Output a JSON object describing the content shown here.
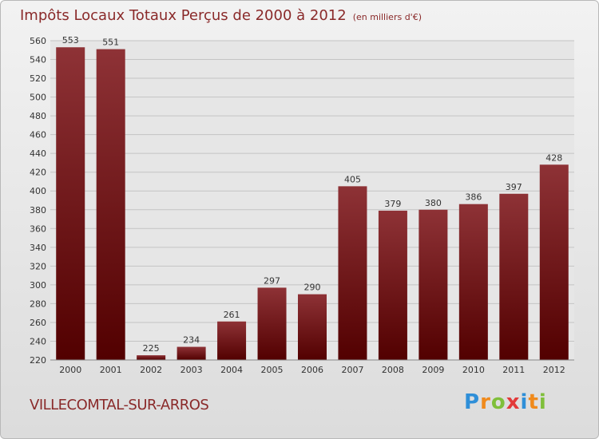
{
  "chart_data": {
    "type": "bar",
    "title": "Impôts Locaux Totaux Perçus de 2000 à 2012",
    "subtitle": "(en milliers d'€)",
    "xlabel": "",
    "ylabel": "",
    "categories": [
      "2000",
      "2001",
      "2002",
      "2003",
      "2004",
      "2005",
      "2006",
      "2007",
      "2008",
      "2009",
      "2010",
      "2011",
      "2012"
    ],
    "values": [
      553,
      551,
      225,
      234,
      261,
      297,
      290,
      405,
      379,
      380,
      386,
      397,
      428
    ],
    "ylim": [
      220,
      560
    ],
    "yticks": [
      220,
      240,
      260,
      280,
      300,
      320,
      340,
      360,
      380,
      400,
      420,
      440,
      460,
      480,
      500,
      520,
      540,
      560
    ],
    "grid": true
  },
  "footer": {
    "city": "VILLECOMTAL-SUR-ARROS"
  },
  "logo": {
    "text": [
      "P",
      "r",
      "o",
      "x",
      "i",
      "t",
      "i"
    ],
    "colors": [
      "#2f8fd8",
      "#f08a1c",
      "#7fbf3a",
      "#e23a3a",
      "#2f8fd8",
      "#f08a1c",
      "#7fbf3a"
    ]
  }
}
